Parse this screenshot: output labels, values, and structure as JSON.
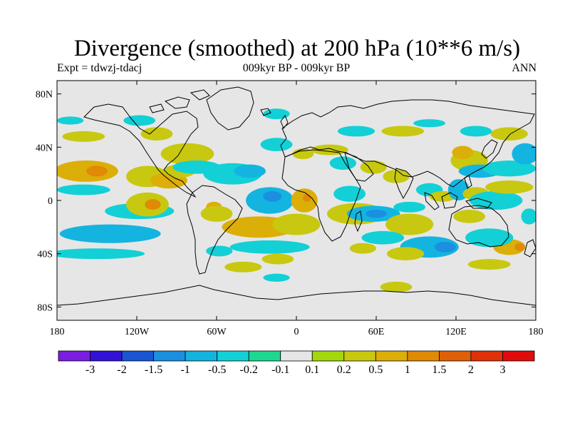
{
  "header": {
    "title": "Divergence (smoothed) at 200 hPa (10**6 m/s)",
    "left": "Expt = tdwzj-tdacj",
    "center": "009kyr BP - 009kyr BP",
    "right": "ANN"
  },
  "chart_data": {
    "type": "heatmap",
    "title": "Divergence (smoothed) at 200 hPa (10**6 m/s)",
    "projection": "cylindrical-equidistant",
    "lon_range": [
      -180,
      180
    ],
    "lat_range": [
      -90,
      90
    ],
    "x_ticks": [
      {
        "value": -180,
        "label": "180"
      },
      {
        "value": -120,
        "label": "120W"
      },
      {
        "value": -60,
        "label": "60W"
      },
      {
        "value": 0,
        "label": "0"
      },
      {
        "value": 60,
        "label": "60E"
      },
      {
        "value": 120,
        "label": "120E"
      },
      {
        "value": 180,
        "label": "180"
      }
    ],
    "y_ticks": [
      {
        "value": 80,
        "label": "80N"
      },
      {
        "value": 40,
        "label": "40N"
      },
      {
        "value": 0,
        "label": "0"
      },
      {
        "value": -40,
        "label": "40S"
      },
      {
        "value": -80,
        "label": "80S"
      }
    ],
    "colorbar": {
      "labels": [
        "-3",
        "-2",
        "-1.5",
        "-1",
        "-0.5",
        "-0.2",
        "-0.1",
        "0.1",
        "0.2",
        "0.5",
        "1",
        "1.5",
        "2",
        "3"
      ],
      "colors": [
        "#7a1ee0",
        "#3311d6",
        "#1a55d4",
        "#1b8fe0",
        "#14b4e0",
        "#12d0d6",
        "#1ed890",
        "#e6e6e6",
        "#a3d80c",
        "#c8c810",
        "#dcae08",
        "#e08a06",
        "#e06008",
        "#e03208",
        "#e00c0c"
      ]
    },
    "regions": [
      {
        "lon": -158,
        "lat": 22,
        "rx": 24,
        "ry": 8,
        "level": 0.5
      },
      {
        "lon": -150,
        "lat": 22,
        "rx": 8,
        "ry": 4,
        "level": 1
      },
      {
        "lon": -160,
        "lat": 8,
        "rx": 20,
        "ry": 4,
        "level": -0.2
      },
      {
        "lon": -112,
        "lat": 18,
        "rx": 16,
        "ry": 8,
        "level": 0.2
      },
      {
        "lon": -96,
        "lat": 15,
        "rx": 14,
        "ry": 6,
        "level": 0.5
      },
      {
        "lon": -140,
        "lat": -25,
        "rx": 38,
        "ry": 7,
        "level": -0.5
      },
      {
        "lon": -118,
        "lat": -8,
        "rx": 26,
        "ry": 6,
        "level": -0.2
      },
      {
        "lon": -112,
        "lat": -3,
        "rx": 16,
        "ry": 9,
        "level": 0.2
      },
      {
        "lon": -108,
        "lat": -3,
        "rx": 6,
        "ry": 4,
        "level": 1
      },
      {
        "lon": -150,
        "lat": -40,
        "rx": 36,
        "ry": 4,
        "level": -0.2
      },
      {
        "lon": -88,
        "lat": 22,
        "rx": 12,
        "ry": 5,
        "level": 0.2
      },
      {
        "lon": -82,
        "lat": 35,
        "rx": 20,
        "ry": 8,
        "level": 0.2
      },
      {
        "lon": -75,
        "lat": 25,
        "rx": 18,
        "ry": 5,
        "level": -0.2
      },
      {
        "lon": -48,
        "lat": 20,
        "rx": 22,
        "ry": 8,
        "level": -0.2
      },
      {
        "lon": -35,
        "lat": 22,
        "rx": 12,
        "ry": 5,
        "level": -0.5
      },
      {
        "lon": -62,
        "lat": -5,
        "rx": 6,
        "ry": 4,
        "level": 0.5
      },
      {
        "lon": -60,
        "lat": -10,
        "rx": 12,
        "ry": 6,
        "level": 0.2
      },
      {
        "lon": -20,
        "lat": 0,
        "rx": 18,
        "ry": 10,
        "level": -0.5
      },
      {
        "lon": -18,
        "lat": 3,
        "rx": 7,
        "ry": 4,
        "level": -1
      },
      {
        "lon": 6,
        "lat": 0,
        "rx": 10,
        "ry": 9,
        "level": 0.5
      },
      {
        "lon": 8,
        "lat": 2,
        "rx": 3,
        "ry": 3,
        "level": 1
      },
      {
        "lon": -28,
        "lat": -20,
        "rx": 28,
        "ry": 8,
        "level": 0.5
      },
      {
        "lon": 0,
        "lat": -18,
        "rx": 18,
        "ry": 8,
        "level": 0.2
      },
      {
        "lon": -20,
        "lat": -35,
        "rx": 30,
        "ry": 5,
        "level": -0.2
      },
      {
        "lon": -58,
        "lat": -38,
        "rx": 10,
        "ry": 4,
        "level": -0.2
      },
      {
        "lon": -40,
        "lat": -50,
        "rx": 14,
        "ry": 4,
        "level": 0.2
      },
      {
        "lon": -14,
        "lat": -44,
        "rx": 12,
        "ry": 4,
        "level": 0.2
      },
      {
        "lon": -15,
        "lat": -58,
        "rx": 10,
        "ry": 3,
        "level": -0.2
      },
      {
        "lon": -105,
        "lat": 50,
        "rx": 12,
        "ry": 5,
        "level": 0.2
      },
      {
        "lon": -118,
        "lat": 60,
        "rx": 12,
        "ry": 4,
        "level": -0.2
      },
      {
        "lon": -160,
        "lat": 48,
        "rx": 16,
        "ry": 4,
        "level": 0.2
      },
      {
        "lon": -170,
        "lat": 60,
        "rx": 10,
        "ry": 3,
        "level": -0.2
      },
      {
        "lon": -15,
        "lat": 65,
        "rx": 10,
        "ry": 4,
        "level": -0.2
      },
      {
        "lon": -15,
        "lat": 42,
        "rx": 12,
        "ry": 5,
        "level": -0.2
      },
      {
        "lon": 5,
        "lat": 35,
        "rx": 8,
        "ry": 4,
        "level": 0.2
      },
      {
        "lon": 25,
        "lat": 38,
        "rx": 14,
        "ry": 4,
        "level": 0.2
      },
      {
        "lon": 45,
        "lat": 52,
        "rx": 14,
        "ry": 4,
        "level": -0.2
      },
      {
        "lon": 80,
        "lat": 52,
        "rx": 16,
        "ry": 4,
        "level": 0.2
      },
      {
        "lon": 100,
        "lat": 58,
        "rx": 12,
        "ry": 3,
        "level": -0.2
      },
      {
        "lon": 35,
        "lat": 28,
        "rx": 10,
        "ry": 5,
        "level": -0.2
      },
      {
        "lon": 58,
        "lat": 25,
        "rx": 10,
        "ry": 5,
        "level": 0.2
      },
      {
        "lon": 75,
        "lat": 18,
        "rx": 10,
        "ry": 5,
        "level": 0.2
      },
      {
        "lon": 40,
        "lat": 5,
        "rx": 12,
        "ry": 6,
        "level": -0.2
      },
      {
        "lon": 45,
        "lat": -10,
        "rx": 22,
        "ry": 8,
        "level": 0.2
      },
      {
        "lon": 58,
        "lat": -10,
        "rx": 20,
        "ry": 6,
        "level": -0.5
      },
      {
        "lon": 60,
        "lat": -10,
        "rx": 8,
        "ry": 3,
        "level": -1
      },
      {
        "lon": 85,
        "lat": -18,
        "rx": 18,
        "ry": 8,
        "level": 0.2
      },
      {
        "lon": 85,
        "lat": -5,
        "rx": 12,
        "ry": 4,
        "level": -0.2
      },
      {
        "lon": 65,
        "lat": -28,
        "rx": 16,
        "ry": 5,
        "level": -0.2
      },
      {
        "lon": 50,
        "lat": -36,
        "rx": 10,
        "ry": 4,
        "level": 0.2
      },
      {
        "lon": 100,
        "lat": -35,
        "rx": 22,
        "ry": 8,
        "level": -0.5
      },
      {
        "lon": 112,
        "lat": -35,
        "rx": 8,
        "ry": 4,
        "level": -1
      },
      {
        "lon": 82,
        "lat": -40,
        "rx": 14,
        "ry": 5,
        "level": 0.2
      },
      {
        "lon": 160,
        "lat": -35,
        "rx": 12,
        "ry": 6,
        "level": 0.5
      },
      {
        "lon": 168,
        "lat": -35,
        "rx": 4,
        "ry": 3,
        "level": 1
      },
      {
        "lon": 145,
        "lat": -28,
        "rx": 18,
        "ry": 7,
        "level": -0.2
      },
      {
        "lon": 145,
        "lat": -48,
        "rx": 16,
        "ry": 4,
        "level": 0.2
      },
      {
        "lon": 75,
        "lat": -65,
        "rx": 12,
        "ry": 4,
        "level": 0.2
      },
      {
        "lon": 100,
        "lat": 8,
        "rx": 10,
        "ry": 5,
        "level": -0.2
      },
      {
        "lon": 110,
        "lat": 3,
        "rx": 10,
        "ry": 4,
        "level": 0.2
      },
      {
        "lon": 122,
        "lat": 8,
        "rx": 8,
        "ry": 8,
        "level": -0.5
      },
      {
        "lon": 135,
        "lat": 5,
        "rx": 10,
        "ry": 5,
        "level": 0.2
      },
      {
        "lon": 150,
        "lat": 0,
        "rx": 20,
        "ry": 7,
        "level": -0.2
      },
      {
        "lon": 160,
        "lat": 10,
        "rx": 18,
        "ry": 5,
        "level": 0.2
      },
      {
        "lon": 130,
        "lat": 30,
        "rx": 14,
        "ry": 8,
        "level": 0.2
      },
      {
        "lon": 125,
        "lat": 36,
        "rx": 8,
        "ry": 5,
        "level": 0.5
      },
      {
        "lon": 138,
        "lat": 22,
        "rx": 16,
        "ry": 5,
        "level": -0.5
      },
      {
        "lon": 160,
        "lat": 24,
        "rx": 20,
        "ry": 6,
        "level": -0.2
      },
      {
        "lon": 172,
        "lat": 35,
        "rx": 10,
        "ry": 8,
        "level": -0.5
      },
      {
        "lon": 160,
        "lat": 50,
        "rx": 14,
        "ry": 5,
        "level": 0.2
      },
      {
        "lon": 135,
        "lat": 52,
        "rx": 12,
        "ry": 4,
        "level": -0.2
      },
      {
        "lon": 130,
        "lat": -12,
        "rx": 12,
        "ry": 5,
        "level": 0.2
      },
      {
        "lon": 175,
        "lat": -12,
        "rx": 6,
        "ry": 6,
        "level": -0.2
      }
    ]
  }
}
